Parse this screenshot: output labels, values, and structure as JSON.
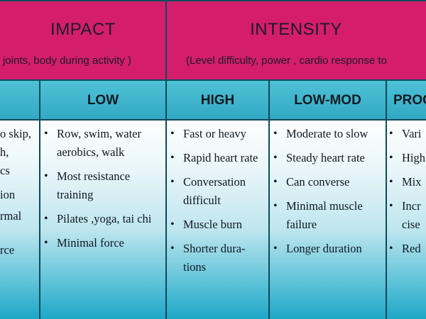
{
  "impact": {
    "title": "IMPACT",
    "subtitle": "joints, body during activity )"
  },
  "intensity": {
    "title": "INTENSITY",
    "subtitle": "(Level difficulty, power , cardio response  to"
  },
  "columns": [
    {
      "header": "",
      "items": [
        "o skip,",
        "h,",
        "cs",
        "ion",
        "rmal",
        "rce"
      ]
    },
    {
      "header": "LOW",
      "items": [
        "Row, swim, water aerobics, walk",
        "Most resistance training",
        "Pilates ,yoga, tai chi",
        "Minimal force"
      ]
    },
    {
      "header": "HIGH",
      "items": [
        "Fast or heavy",
        "Rapid heart rate",
        "Conversation difficult",
        "Muscle burn",
        "Shorter dura-tions"
      ]
    },
    {
      "header": "LOW-MOD",
      "items": [
        "Moderate to slow",
        "Steady heart rate",
        "Can converse",
        "Minimal muscle failure",
        "Longer duration"
      ]
    },
    {
      "header": "PROG",
      "items": [
        "Vari",
        "High",
        "Mix",
        "Incr cise",
        "Red"
      ]
    }
  ],
  "colors": {
    "header_magenta": "#d41e6b",
    "colhead_cyan": "#3fb6ce",
    "border": "#0b4a5c"
  }
}
